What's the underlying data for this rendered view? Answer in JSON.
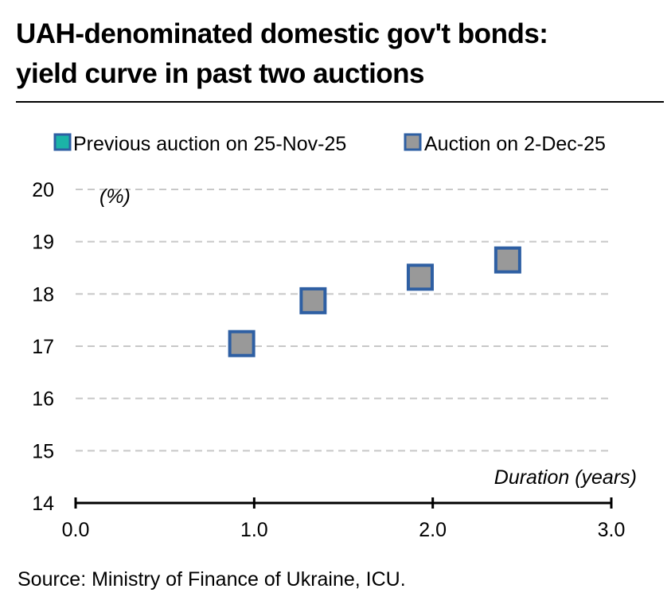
{
  "title_lines": [
    "UAH-denominated domestic gov't bonds:",
    "yield curve in past two auctions"
  ],
  "source": "Source: Ministry of Finance of Ukraine, ICU.",
  "colors": {
    "previous": "#1bb3a7",
    "current": "#999999",
    "marker_edge": "#2e5fa3",
    "grid": "#c8c8c8"
  },
  "chart_data": {
    "type": "scatter",
    "y_unit_label": "(%)",
    "xlabel": "Duration (years)",
    "xlim": [
      0.0,
      3.0
    ],
    "ylim": [
      14,
      20
    ],
    "x_ticks": [
      "0.0",
      "1.0",
      "2.0",
      "3.0"
    ],
    "y_ticks": [
      "14",
      "15",
      "16",
      "17",
      "18",
      "19",
      "20"
    ],
    "grid": "horizontal dashed",
    "legend_position": "top",
    "series": [
      {
        "name": "Previous auction on 25-Nov-25",
        "points": []
      },
      {
        "name": "Auction on 2-Dec-25",
        "points": [
          {
            "x": 0.93,
            "y": 17.05
          },
          {
            "x": 1.33,
            "y": 17.87
          },
          {
            "x": 1.93,
            "y": 18.32
          },
          {
            "x": 2.42,
            "y": 18.65
          }
        ]
      }
    ]
  }
}
